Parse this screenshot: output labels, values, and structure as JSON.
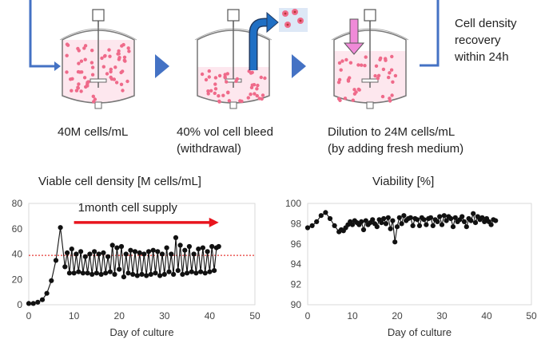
{
  "diagram": {
    "step1_caption": "40M cells/mL",
    "step2_caption": [
      "40% vol cell bleed",
      "(withdrawal)"
    ],
    "step3_caption": [
      "Dilution to 24M cells/mL",
      "(by adding fresh medium)"
    ],
    "recovery_note": [
      "Cell density",
      "recovery",
      "within 24h"
    ],
    "colors": {
      "loop_arrow": "#4472c4",
      "withdraw_arrow": "#1f5fa8",
      "fresh_arrow": "#f08ad8",
      "cells": "#ef6a8a"
    }
  },
  "chart_data": [
    {
      "type": "line",
      "title": "Viable cell density [M cells/mL]",
      "xlabel": "Day of culture",
      "ylabel": "",
      "xlim": [
        0,
        50
      ],
      "ylim": [
        0,
        80
      ],
      "xticks": [
        0,
        10,
        20,
        30,
        40,
        50
      ],
      "yticks": [
        0,
        20,
        40,
        60,
        80
      ],
      "grid": false,
      "reference_line": {
        "y": 39,
        "style": "dotted",
        "color": "#e53935"
      },
      "annotation": {
        "text": "1month cell supply",
        "arrow_from_x": 10,
        "arrow_to_x": 42,
        "arrow_y": 65,
        "color": "#e8141d"
      },
      "series": [
        {
          "x": [
            0,
            1,
            2,
            3,
            4,
            5,
            6,
            7,
            8,
            8.5,
            9,
            9.5,
            10,
            10.5,
            11,
            11.5,
            12,
            12.5,
            13,
            13.5,
            14,
            14.5,
            15,
            15.5,
            16,
            16.5,
            17,
            17.5,
            18,
            18.5,
            19,
            19.5,
            20,
            20.5,
            21,
            21.5,
            22,
            22.5,
            23,
            23.5,
            24,
            24.5,
            25,
            25.5,
            26,
            26.5,
            27,
            27.5,
            28,
            28.5,
            29,
            29.5,
            30,
            30.5,
            31,
            31.5,
            32,
            32.5,
            33,
            33.5,
            34,
            34.5,
            35,
            35.5,
            36,
            36.5,
            37,
            37.5,
            38,
            38.5,
            39,
            39.5,
            40,
            40.5,
            41,
            41.5,
            42
          ],
          "y": [
            1,
            1,
            2,
            4,
            9,
            19,
            35,
            61,
            30,
            41,
            25,
            44,
            25,
            40,
            26,
            42,
            25,
            38,
            25,
            40,
            24,
            42,
            25,
            40,
            24,
            41,
            25,
            38,
            26,
            47,
            24,
            45,
            28,
            46,
            22,
            40,
            25,
            43,
            24,
            42,
            23,
            41,
            24,
            40,
            23,
            42,
            24,
            43,
            25,
            42,
            23,
            40,
            24,
            45,
            26,
            40,
            24,
            53,
            27,
            47,
            24,
            43,
            25,
            46,
            26,
            40,
            25,
            44,
            26,
            45,
            25,
            42,
            26,
            46,
            27,
            45,
            46
          ],
          "color": "#111111"
        }
      ]
    },
    {
      "type": "line",
      "title": "Viability [%]",
      "xlabel": "Day of culture",
      "ylabel": "",
      "xlim": [
        0,
        50
      ],
      "ylim": [
        90,
        100
      ],
      "xticks": [
        0,
        10,
        20,
        30,
        40,
        50
      ],
      "yticks": [
        90,
        92,
        94,
        96,
        98,
        100
      ],
      "grid": false,
      "series": [
        {
          "x": [
            0,
            1,
            2,
            3,
            4,
            5,
            6,
            7,
            7.5,
            8,
            8.5,
            9,
            9.5,
            10,
            10.5,
            11,
            11.5,
            12,
            12.5,
            13,
            13.5,
            14,
            14.5,
            15,
            15.5,
            16,
            16.5,
            17,
            17.5,
            18,
            18.5,
            19,
            19.5,
            20,
            20.5,
            21,
            21.5,
            22,
            22.5,
            23,
            23.5,
            24,
            24.5,
            25,
            25.5,
            26,
            26.5,
            27,
            27.5,
            28,
            28.5,
            29,
            29.5,
            30,
            30.5,
            31,
            31.5,
            32,
            32.5,
            33,
            33.5,
            34,
            34.5,
            35,
            35.5,
            36,
            36.5,
            37,
            37.5,
            38,
            38.5,
            39,
            39.5,
            40,
            40.5,
            41,
            41.5,
            42
          ],
          "y": [
            97.6,
            97.8,
            98.2,
            98.8,
            99.1,
            98.5,
            97.8,
            97.2,
            97.4,
            97.3,
            97.6,
            97.9,
            98.2,
            97.9,
            98.3,
            98.1,
            97.9,
            98.2,
            97.4,
            98.3,
            97.9,
            98.1,
            98.4,
            98.0,
            97.7,
            98.4,
            98.1,
            98.5,
            98.0,
            98.6,
            97.5,
            98.3,
            96.2,
            97.7,
            98.6,
            98.0,
            98.8,
            98.3,
            98.5,
            98.6,
            97.8,
            98.5,
            98.4,
            97.8,
            98.6,
            98.4,
            97.9,
            98.5,
            98.6,
            97.8,
            98.4,
            98.2,
            98.7,
            97.9,
            98.8,
            98.3,
            98.7,
            98.5,
            97.7,
            98.6,
            98.2,
            98.4,
            98.7,
            98.2,
            97.7,
            98.5,
            98.3,
            99.0,
            98.1,
            98.7,
            98.4,
            98.6,
            98.2,
            98.5,
            98.2,
            97.9,
            98.4,
            98.3
          ],
          "color": "#111111"
        }
      ]
    }
  ]
}
